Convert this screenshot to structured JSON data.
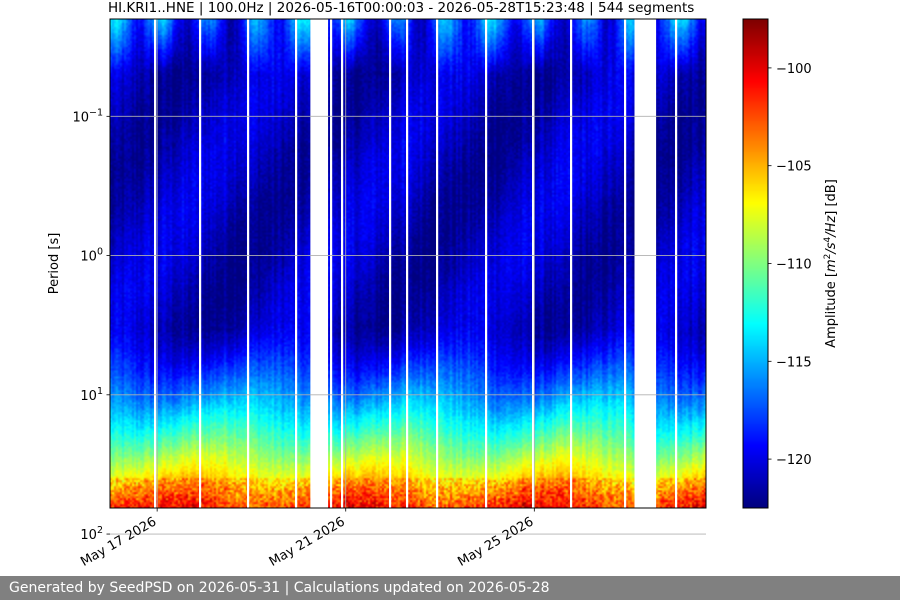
{
  "chart_data": {
    "type": "heatmap",
    "title": "HI.KRI1..HNE | 100.0Hz | 2026-05-16T00:00:03 - 2026-05-28T15:23:48 | 544 segments",
    "xlabel": "",
    "ylabel": "Period [s]",
    "colorbar_label_prefix": "Amplitude [",
    "colorbar_label_units": "m2/s4/Hz",
    "colorbar_label_suffix": "] [dB]",
    "x_range": [
      "2026-05-16T00:00:03",
      "2026-05-28T15:23:48"
    ],
    "x_ticks": [
      "May 17 2026",
      "May 21 2026",
      "May 25 2026"
    ],
    "x_tick_dates": [
      "2026-05-17",
      "2026-05-21",
      "2026-05-25"
    ],
    "y_scale": "log",
    "y_range": [
      0.02,
      65
    ],
    "y_inverted": true,
    "y_ticks": [
      {
        "base": "10",
        "exp": "−1",
        "value": 0.1
      },
      {
        "base": "10",
        "exp": "0",
        "value": 1
      },
      {
        "base": "10",
        "exp": "1",
        "value": 10
      },
      {
        "base": "10",
        "exp": "2",
        "value": 100
      }
    ],
    "colorbar_range": [
      -122.5,
      -97.5
    ],
    "colorbar_ticks": [
      -100,
      -105,
      -110,
      -115,
      -120
    ],
    "colorbar_tick_labels": [
      "−100",
      "−105",
      "−110",
      "−115",
      "−120"
    ],
    "colormap": "jet",
    "grid": true,
    "gaps": [
      {
        "start": "2026-05-20T06:00:00",
        "end": "2026-05-20T15:00:00"
      },
      {
        "start": "2026-05-27T03:00:00",
        "end": "2026-05-27T14:00:00"
      }
    ],
    "notes": "Quiet periods (blue, about -120 dB) from 0.1 s to 5 s; loud band (red, about -98 dB) at periods above 30 s; a noisy strip at the shortest periods recurs daily."
  },
  "footer": {
    "text": "Generated by SeedPSD on 2026-05-31 | Calculations updated on 2026-05-28"
  }
}
